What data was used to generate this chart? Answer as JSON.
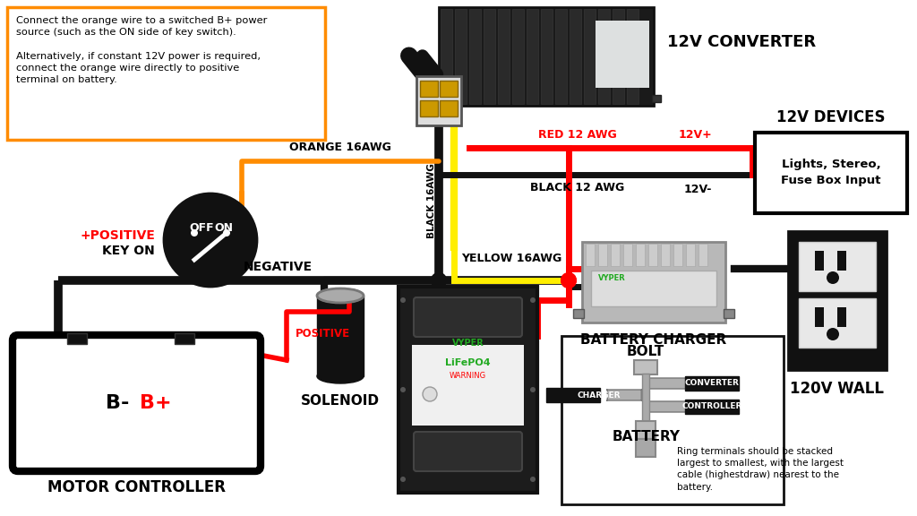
{
  "bg_color": "#ffffff",
  "wire_colors": {
    "red": "#ff0000",
    "black": "#111111",
    "orange": "#ff8c00",
    "yellow": "#ffee00"
  },
  "labels": {
    "converter": "12V CONVERTER",
    "devices": "12V DEVICES",
    "devices_sub": "Lights, Stereo,\nFuse Box Input",
    "charger": "BATTERY CHARGER",
    "wall": "120V WALL",
    "motor": "MOTOR CONTROLLER",
    "solenoid": "SOLENOID",
    "battery_label": "BATTERY",
    "bolt_label": "BOLT",
    "positive_key": "+POSITIVE\nKEY ON",
    "negative": "NEGATIVE",
    "positive": "POSITIVE",
    "red_wire": "RED 12 AWG",
    "black_wire": "BLACK 12 AWG",
    "orange_wire": "ORANGE 16AWG",
    "yellow_wire": "YELLOW 16AWG",
    "black16_wire": "BLACK 16AWG",
    "12vplus": "12V+",
    "12vminus": "12V-",
    "bminus": "B-",
    "bplus": "B+",
    "off": "OFF",
    "on": "ON",
    "ring_text": "Ring terminals should be stacked\nlargest to smallest, with the largest\ncable (highestdraw) nearest to the\nbattery.",
    "info_text": "Connect the orange wire to a switched B+ power\nsource (such as the ON side of key switch).\n\nAlternatively, if constant 12V power is required,\nconnect the orange wire directly to positive\nterminal on battery.",
    "converter_label": "CONVERTER",
    "charger_label2": "CHARGER",
    "controller_label": "CONTROLLER"
  }
}
